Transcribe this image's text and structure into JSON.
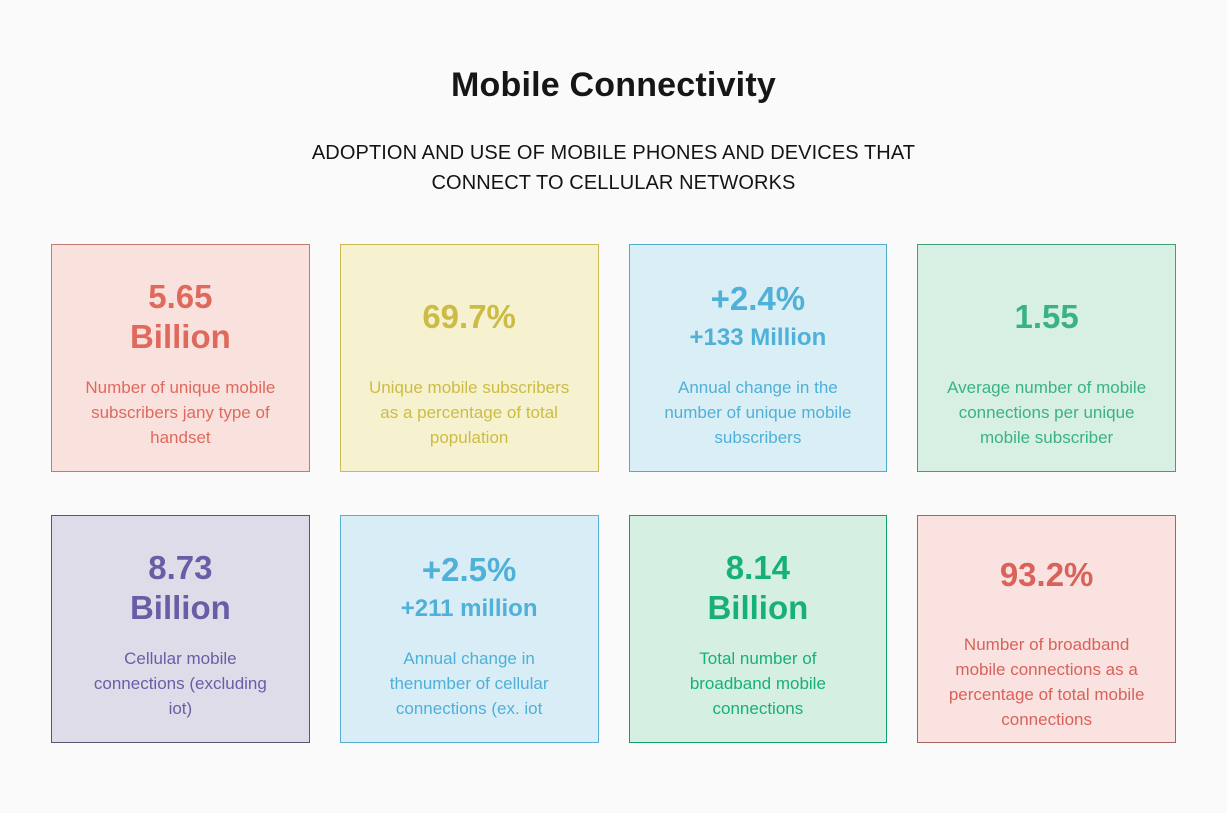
{
  "page": {
    "background": "#fafafa",
    "title": "Mobile Connectivity",
    "subtitle_lines": [
      "ADOPTION AND USE OF MOBILE PHONES AND DEVICES THAT",
      "CONNECT TO CELLULAR NETWORKS"
    ]
  },
  "cards": [
    {
      "name": "unique-mobile-subscribers",
      "value_line1": "5.65",
      "value_line2": "Billion",
      "subvalue": "",
      "description": "Number of unique mobile subscribers jany type of handset",
      "colors": {
        "background": "#f9e2de",
        "border": "#bd7d74",
        "text": "#e0695d"
      }
    },
    {
      "name": "subscriber-penetration",
      "value_line1": "69.7%",
      "value_line2": "",
      "subvalue": "",
      "description": "Unique mobile subscribers as a percentage of total population",
      "colors": {
        "background": "#f6f2d0",
        "border": "#c9bc55",
        "text": "#ccbc45"
      }
    },
    {
      "name": "subscriber-annual-change",
      "value_line1": "+2.4%",
      "value_line2": "",
      "subvalue": "+133 Million",
      "description": "Annual change in the number of unique mobile subscribers",
      "colors": {
        "background": "#daeef6",
        "border": "#4fadc9",
        "text": "#4fb0d8"
      }
    },
    {
      "name": "connections-per-subscriber",
      "value_line1": "1.55",
      "value_line2": "",
      "subvalue": "",
      "description": "Average number of mobile connections per unique mobile subscriber",
      "colors": {
        "background": "#d8efe4",
        "border": "#3f9f79",
        "text": "#39b384"
      }
    },
    {
      "name": "cellular-connections",
      "value_line1": "8.73",
      "value_line2": "Billion",
      "subvalue": "",
      "description": "Cellular mobile connections (excluding iot)",
      "colors": {
        "background": "#dfdcea",
        "border": "#5a5474",
        "text": "#6a5da6"
      }
    },
    {
      "name": "connections-annual-change",
      "value_line1": "+2.5%",
      "value_line2": "",
      "subvalue": "+211 million",
      "description": "Annual change in thenumber of cellular connections (ex. iot",
      "colors": {
        "background": "#d8edf6",
        "border": "#56b1d0",
        "text": "#4fb0d8"
      }
    },
    {
      "name": "broadband-connections",
      "value_line1": "8.14",
      "value_line2": "Billion",
      "subvalue": "",
      "description": "Total number of broadband mobile connections",
      "colors": {
        "background": "#d5efe3",
        "border": "#0f9e67",
        "text": "#16b175"
      }
    },
    {
      "name": "broadband-percentage",
      "value_line1": "93.2%",
      "value_line2": "",
      "subvalue": "",
      "description": "Number of broadband mobile connections as a percentage of total mobile connections",
      "colors": {
        "background": "#f9e2df",
        "border": "#a3655f",
        "text": "#d9625a"
      }
    }
  ],
  "chart_data": {
    "type": "table",
    "title": "Mobile Connectivity",
    "subtitle": "ADOPTION AND USE OF MOBILE PHONES AND DEVICES THAT CONNECT TO CELLULAR NETWORKS",
    "categories": [
      "Number of unique mobile subscribers jany type of handset",
      "Unique mobile subscribers as a percentage of total population",
      "Annual change in the number of unique mobile subscribers",
      "Average number of mobile connections per unique mobile subscriber",
      "Cellular mobile connections (excluding iot)",
      "Annual change in thenumber of cellular connections (ex. iot",
      "Total number of broadband mobile connections",
      "Number of broadband mobile connections as a percentage of total mobile connections"
    ],
    "values": [
      "5.65 Billion",
      "69.7%",
      "+2.4% (+133 Million)",
      "1.55",
      "8.73 Billion",
      "+2.5% (+211 million)",
      "8.14 Billion",
      "93.2%"
    ]
  }
}
